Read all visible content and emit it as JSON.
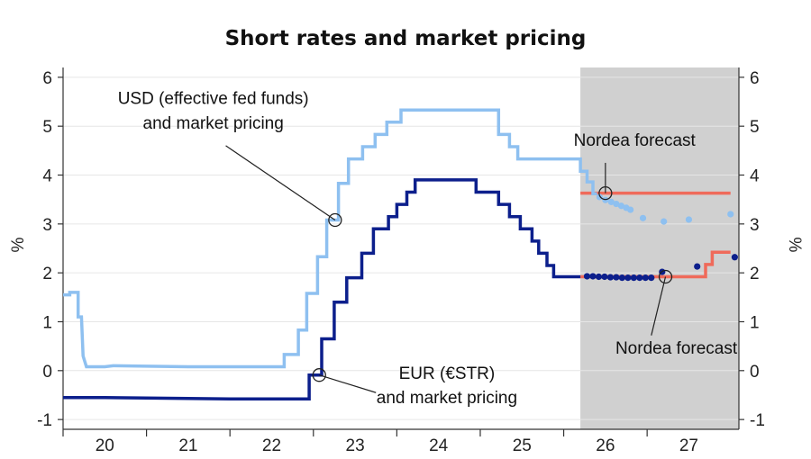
{
  "chart_data": {
    "type": "line",
    "title": "Short rates and market pricing",
    "ylabel_left": "%",
    "ylabel_right": "%",
    "ylim": [
      -1.2,
      6.2
    ],
    "yticks": [
      -1,
      0,
      1,
      2,
      3,
      4,
      5,
      6
    ],
    "xlim": [
      2019.5,
      2027.6
    ],
    "xticks": [
      {
        "label": "20",
        "value": 2020
      },
      {
        "label": "21",
        "value": 2021
      },
      {
        "label": "22",
        "value": 2022
      },
      {
        "label": "23",
        "value": 2023
      },
      {
        "label": "24",
        "value": 2024
      },
      {
        "label": "25",
        "value": 2025
      },
      {
        "label": "26",
        "value": 2026
      },
      {
        "label": "27",
        "value": 2027
      }
    ],
    "forecast_shading": {
      "from": 2025.7,
      "to": 2027.6,
      "color": "#d0d0d0"
    },
    "series": [
      {
        "key": "usd",
        "color": "#8ec0f0",
        "points": [
          [
            2019.5,
            1.55
          ],
          [
            2019.58,
            1.55
          ],
          [
            2019.58,
            1.6
          ],
          [
            2019.68,
            1.6
          ],
          [
            2019.68,
            1.1
          ],
          [
            2019.72,
            1.1
          ],
          [
            2019.74,
            0.3
          ],
          [
            2019.78,
            0.08
          ],
          [
            2020.0,
            0.08
          ],
          [
            2020.1,
            0.1
          ],
          [
            2020.5,
            0.09
          ],
          [
            2021.0,
            0.08
          ],
          [
            2021.5,
            0.08
          ],
          [
            2022.0,
            0.08
          ],
          [
            2022.15,
            0.08
          ],
          [
            2022.15,
            0.33
          ],
          [
            2022.32,
            0.33
          ],
          [
            2022.32,
            0.83
          ],
          [
            2022.42,
            0.83
          ],
          [
            2022.42,
            1.58
          ],
          [
            2022.55,
            1.58
          ],
          [
            2022.55,
            2.33
          ],
          [
            2022.66,
            2.33
          ],
          [
            2022.66,
            3.08
          ],
          [
            2022.8,
            3.08
          ],
          [
            2022.8,
            3.83
          ],
          [
            2022.92,
            3.83
          ],
          [
            2022.92,
            4.33
          ],
          [
            2023.09,
            4.33
          ],
          [
            2023.09,
            4.58
          ],
          [
            2023.24,
            4.58
          ],
          [
            2023.24,
            4.83
          ],
          [
            2023.38,
            4.83
          ],
          [
            2023.38,
            5.08
          ],
          [
            2023.55,
            5.08
          ],
          [
            2023.55,
            5.33
          ],
          [
            2024.72,
            5.33
          ],
          [
            2024.72,
            4.83
          ],
          [
            2024.85,
            4.83
          ],
          [
            2024.85,
            4.58
          ],
          [
            2024.95,
            4.58
          ],
          [
            2024.95,
            4.33
          ],
          [
            2025.7,
            4.33
          ],
          [
            2025.7,
            4.08
          ],
          [
            2025.78,
            4.08
          ],
          [
            2025.78,
            3.86
          ],
          [
            2025.85,
            3.86
          ],
          [
            2025.85,
            3.62
          ],
          [
            2025.9,
            3.62
          ]
        ],
        "points_fc": [
          [
            2025.93,
            3.55
          ],
          [
            2026.0,
            3.49
          ],
          [
            2026.07,
            3.45
          ],
          [
            2026.13,
            3.41
          ],
          [
            2026.19,
            3.37
          ],
          [
            2026.25,
            3.33
          ],
          [
            2026.3,
            3.29
          ],
          [
            2026.45,
            3.12
          ],
          [
            2026.7,
            3.05
          ],
          [
            2027.0,
            3.09
          ],
          [
            2027.5,
            3.2
          ]
        ]
      },
      {
        "key": "eur",
        "color": "#0c1f8c",
        "points": [
          [
            2019.5,
            -0.55
          ],
          [
            2020.0,
            -0.55
          ],
          [
            2020.5,
            -0.56
          ],
          [
            2021.0,
            -0.57
          ],
          [
            2021.5,
            -0.58
          ],
          [
            2022.0,
            -0.58
          ],
          [
            2022.45,
            -0.58
          ],
          [
            2022.45,
            -0.09
          ],
          [
            2022.6,
            -0.09
          ],
          [
            2022.6,
            0.65
          ],
          [
            2022.75,
            0.65
          ],
          [
            2022.75,
            1.4
          ],
          [
            2022.9,
            1.4
          ],
          [
            2022.9,
            1.9
          ],
          [
            2023.08,
            1.9
          ],
          [
            2023.08,
            2.4
          ],
          [
            2023.22,
            2.4
          ],
          [
            2023.22,
            2.9
          ],
          [
            2023.4,
            2.9
          ],
          [
            2023.4,
            3.15
          ],
          [
            2023.5,
            3.15
          ],
          [
            2023.5,
            3.4
          ],
          [
            2023.62,
            3.4
          ],
          [
            2023.62,
            3.65
          ],
          [
            2023.72,
            3.65
          ],
          [
            2023.72,
            3.9
          ],
          [
            2024.45,
            3.9
          ],
          [
            2024.45,
            3.65
          ],
          [
            2024.72,
            3.65
          ],
          [
            2024.72,
            3.4
          ],
          [
            2024.85,
            3.4
          ],
          [
            2024.85,
            3.15
          ],
          [
            2024.98,
            3.15
          ],
          [
            2024.98,
            2.9
          ],
          [
            2025.12,
            2.9
          ],
          [
            2025.12,
            2.65
          ],
          [
            2025.2,
            2.65
          ],
          [
            2025.2,
            2.4
          ],
          [
            2025.3,
            2.4
          ],
          [
            2025.3,
            2.15
          ],
          [
            2025.38,
            2.15
          ],
          [
            2025.38,
            1.92
          ],
          [
            2025.7,
            1.92
          ]
        ],
        "points_fc": [
          [
            2025.78,
            1.93
          ],
          [
            2025.85,
            1.93
          ],
          [
            2025.92,
            1.92
          ],
          [
            2025.99,
            1.92
          ],
          [
            2026.06,
            1.91
          ],
          [
            2026.13,
            1.91
          ],
          [
            2026.2,
            1.9
          ],
          [
            2026.27,
            1.9
          ],
          [
            2026.34,
            1.9
          ],
          [
            2026.41,
            1.9
          ],
          [
            2026.48,
            1.9
          ],
          [
            2026.55,
            1.9
          ],
          [
            2026.68,
            2.02
          ],
          [
            2027.1,
            2.13
          ],
          [
            2027.55,
            2.32
          ]
        ]
      }
    ],
    "forecasts": [
      {
        "key": "usd_nordea",
        "color": "#ef6a5a",
        "points": [
          [
            2025.7,
            3.63
          ],
          [
            2027.5,
            3.63
          ]
        ]
      },
      {
        "key": "eur_nordea",
        "color": "#ef6a5a",
        "points": [
          [
            2025.7,
            1.92
          ],
          [
            2027.2,
            1.92
          ],
          [
            2027.2,
            2.17
          ],
          [
            2027.28,
            2.17
          ],
          [
            2027.28,
            2.42
          ],
          [
            2027.5,
            2.42
          ]
        ]
      }
    ],
    "annotations": [
      {
        "key": "usd",
        "lines": [
          "USD (effective fed funds)",
          "and market pricing"
        ],
        "text_x": 2021.3,
        "text_y1": 5.45,
        "text_y2": 4.95,
        "anchor": "middle",
        "target": [
          2022.76,
          3.08
        ],
        "line_from": [
          2021.45,
          4.6
        ]
      },
      {
        "key": "eur",
        "lines": [
          "EUR (€STR)",
          "and market pricing"
        ],
        "text_x": 2024.1,
        "text_y1": -0.17,
        "text_y2": -0.67,
        "anchor": "middle",
        "target": [
          2022.57,
          -0.09
        ],
        "line_from": [
          2023.25,
          -0.45
        ]
      },
      {
        "key": "usd_fc",
        "lines": [
          "Nordea forecast"
        ],
        "text_x": 2026.35,
        "text_y1": 4.6,
        "anchor": "middle",
        "target": [
          2026.0,
          3.63
        ],
        "line_from": [
          2026.0,
          4.25
        ]
      },
      {
        "key": "eur_fc",
        "lines": [
          "Nordea forecast"
        ],
        "text_x": 2026.85,
        "text_y1": 0.35,
        "anchor": "middle",
        "target": [
          2026.72,
          1.92
        ],
        "line_from": [
          2026.55,
          0.72
        ]
      }
    ]
  }
}
